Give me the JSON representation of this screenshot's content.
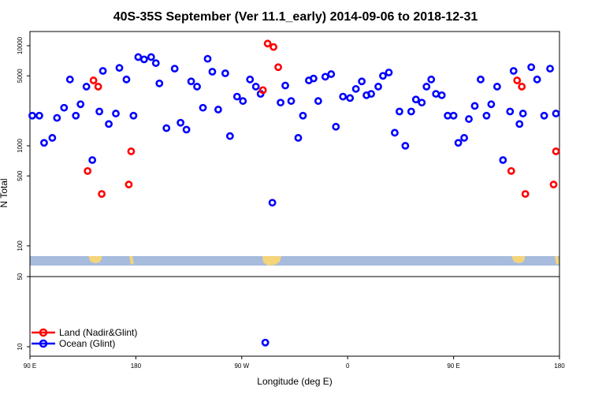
{
  "chart_data": {
    "type": "scatter",
    "title": "40S-35S September (Ver 11.1_early)   2014-09-06 to 2018-12-31",
    "xlabel": "Longitude (deg E)",
    "ylabel": "N Total",
    "y_scale": "log",
    "x_ticks": [
      {
        "value": 90,
        "label": "90 E"
      },
      {
        "value": 180,
        "label": "180"
      },
      {
        "value": 270,
        "label": "90 W"
      },
      {
        "value": 360,
        "label": "0"
      },
      {
        "value": 450,
        "label": "90 E"
      },
      {
        "value": 540,
        "label": "180"
      }
    ],
    "xlim": [
      90,
      540
    ],
    "upper_panel": {
      "ylim": [
        50,
        15000
      ],
      "y_ticks": [
        {
          "value": 10000,
          "label": "10000"
        },
        {
          "value": 5000,
          "label": "5000"
        },
        {
          "value": 1000,
          "label": "1000"
        },
        {
          "value": 500,
          "label": "500"
        },
        {
          "value": 100,
          "label": "100"
        },
        {
          "value": 50,
          "label": "50"
        }
      ]
    },
    "lower_panel": {
      "y_ticks": [
        {
          "value": 50,
          "label": "50"
        },
        {
          "value": 10,
          "label": "10"
        }
      ]
    },
    "legend": {
      "position": "bottom-left"
    },
    "colors": {
      "land": "#ff0000",
      "ocean": "#0000ff",
      "map_ocean": "#a7bbdc",
      "map_land": "#f4d57a"
    },
    "series": [
      {
        "name": "Land (Nadir&Glint)",
        "color": "#ff0000",
        "points": [
          {
            "x": 139,
            "y": 560
          },
          {
            "x": 144,
            "y": 4500
          },
          {
            "x": 148,
            "y": 3900
          },
          {
            "x": 151,
            "y": 330
          },
          {
            "x": 174,
            "y": 410
          },
          {
            "x": 176,
            "y": 880
          },
          {
            "x": 288,
            "y": 3600
          },
          {
            "x": 292,
            "y": 10500
          },
          {
            "x": 297,
            "y": 9700
          },
          {
            "x": 301,
            "y": 6100
          },
          {
            "x": 499,
            "y": 560
          },
          {
            "x": 504,
            "y": 4500
          },
          {
            "x": 508,
            "y": 3900
          },
          {
            "x": 511,
            "y": 330
          },
          {
            "x": 535,
            "y": 410
          },
          {
            "x": 537,
            "y": 880
          }
        ]
      },
      {
        "name": "Ocean (Glint)",
        "color": "#0000ff",
        "points": [
          {
            "x": 92,
            "y": 2000
          },
          {
            "x": 98,
            "y": 2000
          },
          {
            "x": 102,
            "y": 1070
          },
          {
            "x": 109,
            "y": 1200
          },
          {
            "x": 113,
            "y": 1900
          },
          {
            "x": 119,
            "y": 2400
          },
          {
            "x": 124,
            "y": 4600
          },
          {
            "x": 129,
            "y": 2000
          },
          {
            "x": 133,
            "y": 2600
          },
          {
            "x": 138,
            "y": 3900
          },
          {
            "x": 143,
            "y": 720
          },
          {
            "x": 149,
            "y": 2200
          },
          {
            "x": 152,
            "y": 5600
          },
          {
            "x": 157,
            "y": 1650
          },
          {
            "x": 163,
            "y": 2100
          },
          {
            "x": 166,
            "y": 6000
          },
          {
            "x": 172,
            "y": 4600
          },
          {
            "x": 178,
            "y": 2000
          },
          {
            "x": 182,
            "y": 7700
          },
          {
            "x": 187,
            "y": 7300
          },
          {
            "x": 193,
            "y": 7700
          },
          {
            "x": 197,
            "y": 6700
          },
          {
            "x": 200,
            "y": 4200
          },
          {
            "x": 206,
            "y": 1500
          },
          {
            "x": 213,
            "y": 5900
          },
          {
            "x": 218,
            "y": 1700
          },
          {
            "x": 223,
            "y": 1450
          },
          {
            "x": 227,
            "y": 4400
          },
          {
            "x": 232,
            "y": 3900
          },
          {
            "x": 237,
            "y": 2400
          },
          {
            "x": 241,
            "y": 7400
          },
          {
            "x": 245,
            "y": 5500
          },
          {
            "x": 250,
            "y": 2300
          },
          {
            "x": 256,
            "y": 5300
          },
          {
            "x": 260,
            "y": 1250
          },
          {
            "x": 266,
            "y": 3100
          },
          {
            "x": 271,
            "y": 2800
          },
          {
            "x": 277,
            "y": 4600
          },
          {
            "x": 282,
            "y": 3900
          },
          {
            "x": 286,
            "y": 3300
          },
          {
            "x": 296,
            "y": 270
          },
          {
            "x": 303,
            "y": 2700
          },
          {
            "x": 307,
            "y": 4000
          },
          {
            "x": 312,
            "y": 2800
          },
          {
            "x": 318,
            "y": 1200
          },
          {
            "x": 322,
            "y": 2000
          },
          {
            "x": 327,
            "y": 4500
          },
          {
            "x": 331,
            "y": 4700
          },
          {
            "x": 335,
            "y": 2800
          },
          {
            "x": 341,
            "y": 4900
          },
          {
            "x": 346,
            "y": 5200
          },
          {
            "x": 350,
            "y": 1550
          },
          {
            "x": 356,
            "y": 3100
          },
          {
            "x": 362,
            "y": 3000
          },
          {
            "x": 367,
            "y": 3700
          },
          {
            "x": 372,
            "y": 4400
          },
          {
            "x": 376,
            "y": 3200
          },
          {
            "x": 380,
            "y": 3300
          },
          {
            "x": 386,
            "y": 3900
          },
          {
            "x": 390,
            "y": 5000
          },
          {
            "x": 395,
            "y": 5400
          },
          {
            "x": 400,
            "y": 1350
          },
          {
            "x": 404,
            "y": 2200
          },
          {
            "x": 409,
            "y": 1000
          },
          {
            "x": 414,
            "y": 2200
          },
          {
            "x": 418,
            "y": 2900
          },
          {
            "x": 423,
            "y": 2700
          },
          {
            "x": 427,
            "y": 3900
          },
          {
            "x": 431,
            "y": 4600
          },
          {
            "x": 435,
            "y": 3300
          },
          {
            "x": 440,
            "y": 3200
          },
          {
            "x": 445,
            "y": 2000
          },
          {
            "x": 450,
            "y": 2000
          },
          {
            "x": 454,
            "y": 1070
          },
          {
            "x": 459,
            "y": 1200
          },
          {
            "x": 463,
            "y": 1850
          },
          {
            "x": 468,
            "y": 2500
          },
          {
            "x": 473,
            "y": 4600
          },
          {
            "x": 478,
            "y": 2000
          },
          {
            "x": 482,
            "y": 2600
          },
          {
            "x": 487,
            "y": 3900
          },
          {
            "x": 492,
            "y": 720
          },
          {
            "x": 498,
            "y": 2200
          },
          {
            "x": 501,
            "y": 5600
          },
          {
            "x": 506,
            "y": 1650
          },
          {
            "x": 509,
            "y": 2100
          },
          {
            "x": 516,
            "y": 6100
          },
          {
            "x": 521,
            "y": 4600
          },
          {
            "x": 527,
            "y": 2000
          },
          {
            "x": 532,
            "y": 5900
          },
          {
            "x": 537,
            "y": 2100
          }
        ],
        "lower_points": [
          {
            "x": 290,
            "y": 11
          }
        ]
      }
    ]
  }
}
